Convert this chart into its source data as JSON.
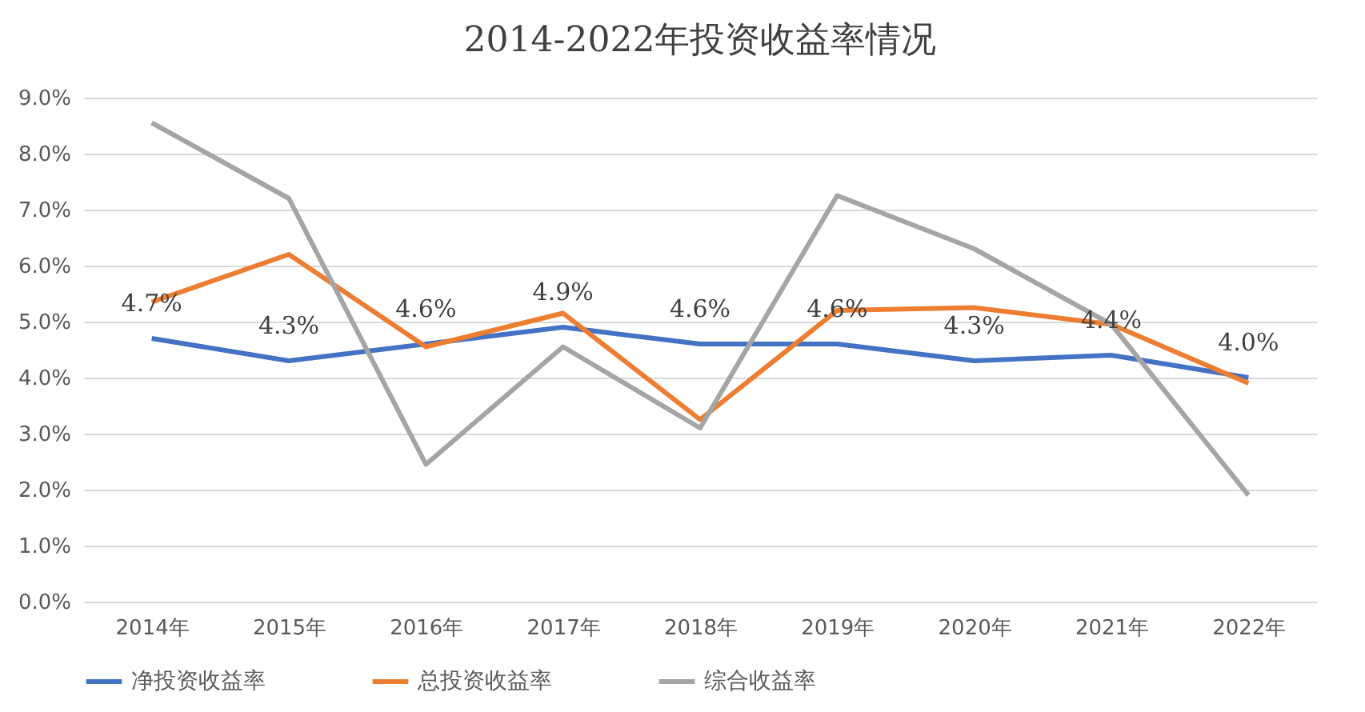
{
  "chart_data": {
    "type": "line",
    "title": "2014-2022年投资收益率情况",
    "categories": [
      "2014年",
      "2015年",
      "2016年",
      "2017年",
      "2018年",
      "2019年",
      "2020年",
      "2021年",
      "2022年"
    ],
    "series": [
      {
        "name": "净投资收益率",
        "color": "#4472c4",
        "values": [
          4.7,
          4.3,
          4.6,
          4.9,
          4.6,
          4.6,
          4.3,
          4.4,
          4.0
        ],
        "value_labels": [
          "4.7%",
          "4.3%",
          "4.6%",
          "4.9%",
          "4.6%",
          "4.6%",
          "4.3%",
          "4.4%",
          "4.0%"
        ]
      },
      {
        "name": "总投资收益率",
        "color": "#ed7d31",
        "values": [
          5.35,
          6.2,
          4.55,
          5.15,
          3.25,
          5.2,
          5.25,
          4.95,
          3.9
        ]
      },
      {
        "name": "综合收益率",
        "color": "#a5a5a5",
        "values": [
          8.55,
          7.2,
          2.45,
          4.55,
          3.1,
          7.25,
          6.3,
          4.95,
          1.9
        ]
      }
    ],
    "ylim": [
      0,
      9
    ],
    "yticks": [
      {
        "value": 0,
        "label": "0.0%"
      },
      {
        "value": 1,
        "label": "1.0%"
      },
      {
        "value": 2,
        "label": "2.0%"
      },
      {
        "value": 3,
        "label": "3.0%"
      },
      {
        "value": 4,
        "label": "4.0%"
      },
      {
        "value": 5,
        "label": "5.0%"
      },
      {
        "value": 6,
        "label": "6.0%"
      },
      {
        "value": 7,
        "label": "7.0%"
      },
      {
        "value": 8,
        "label": "8.0%"
      },
      {
        "value": 9,
        "label": "9.0%"
      }
    ],
    "grid": "y",
    "legend": "bottom",
    "marker": "none",
    "line_style": "solid"
  }
}
